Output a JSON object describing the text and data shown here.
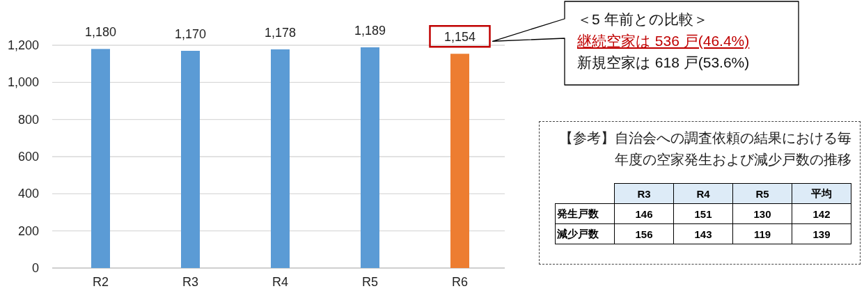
{
  "chart_data": [
    {
      "type": "bar",
      "categories": [
        "R2",
        "R3",
        "R4",
        "R5",
        "R6"
      ],
      "values": [
        1180,
        1170,
        1178,
        1189,
        1154
      ],
      "colors": [
        "#5b9bd5",
        "#5b9bd5",
        "#5b9bd5",
        "#5b9bd5",
        "#ed7d31"
      ],
      "value_labels": [
        "1,180",
        "1,170",
        "1,178",
        "1,189",
        "1,154"
      ],
      "ylim": [
        0,
        1200
      ],
      "yticks": [
        0,
        200,
        400,
        600,
        800,
        {
          "value": 1000,
          "label": "1,000"
        },
        {
          "value": 1200,
          "label": "1,200"
        }
      ],
      "grid": "y",
      "annotations": [
        "＜5 年前との比較＞",
        "継続空家は 536 戸(46.4%)",
        "新規空家は 618 戸(53.6%)"
      ]
    },
    {
      "type": "other",
      "title": "【参考】自治会への調査依頼の結果における毎年度の空家発生および減少戸数の推移",
      "categories": [
        "R3",
        "R4",
        "R5",
        "平均"
      ],
      "series": [
        {
          "name": "発生戸数",
          "values": [
            146,
            151,
            130,
            142
          ]
        },
        {
          "name": "減少戸数",
          "values": [
            156,
            143,
            119,
            139
          ]
        }
      ],
      "data_labels": true
    }
  ]
}
